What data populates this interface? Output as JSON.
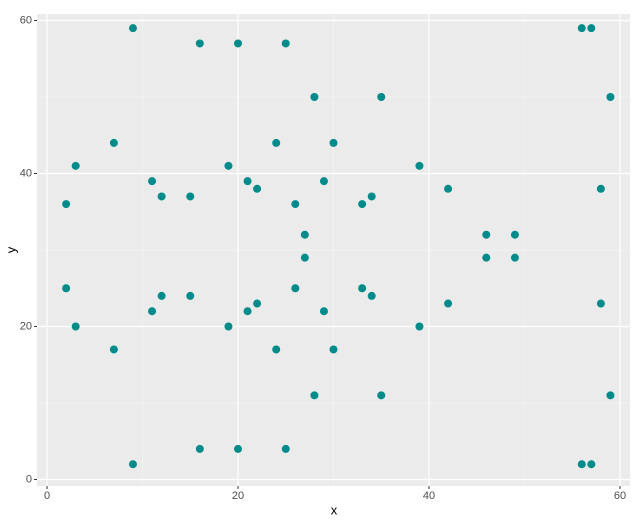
{
  "chart_data": {
    "type": "scatter",
    "x_label": "x",
    "y_label": "y",
    "color": "#008b8b",
    "x": [
      9,
      16,
      20,
      25,
      56,
      57,
      28,
      35,
      59,
      7,
      3,
      24,
      30,
      19,
      39,
      11,
      21,
      29,
      12,
      15,
      22,
      34,
      42,
      58,
      2,
      26,
      33,
      27,
      46,
      49,
      27,
      46,
      49,
      2,
      26,
      33,
      12,
      15,
      34,
      22,
      42,
      58,
      11,
      21,
      29,
      3,
      19,
      39,
      7,
      24,
      30,
      28,
      35,
      59,
      9,
      16,
      20,
      25,
      56,
      57
    ],
    "y": [
      59,
      57,
      57,
      57,
      59,
      59,
      50,
      50,
      50,
      44,
      41,
      44,
      44,
      41,
      41,
      39,
      39,
      39,
      37,
      37,
      38,
      37,
      38,
      38,
      36,
      36,
      36,
      32,
      32,
      32,
      29,
      29,
      29,
      25,
      25,
      25,
      24,
      24,
      24,
      23,
      23,
      23,
      22,
      22,
      22,
      20,
      20,
      20,
      17,
      17,
      17,
      11,
      11,
      11,
      2,
      4,
      4,
      4,
      2,
      2
    ],
    "xlim": [
      -1.05,
      61.05
    ],
    "ylim": [
      -0.85,
      60.85
    ],
    "xticks": [
      0,
      20,
      40,
      60
    ],
    "yticks": [
      0,
      20,
      40,
      60
    ],
    "grid": true
  }
}
